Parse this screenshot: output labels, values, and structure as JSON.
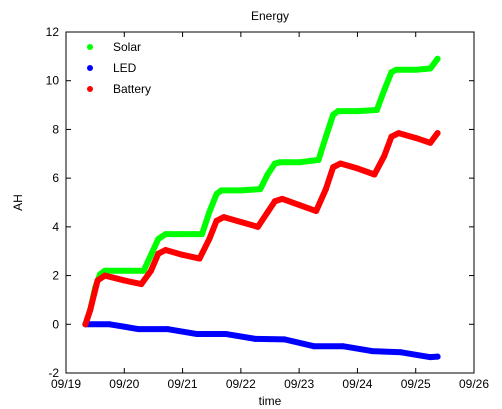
{
  "chart_data": {
    "type": "line",
    "title": "Energy",
    "xlabel": "time",
    "ylabel": "AH",
    "xlim": [
      "09/19",
      "09/26"
    ],
    "ylim": [
      -2,
      12
    ],
    "x_ticks": [
      "09/19",
      "09/20",
      "09/21",
      "09/22",
      "09/23",
      "09/24",
      "09/25",
      "09/26"
    ],
    "y_ticks": [
      -2,
      0,
      2,
      4,
      6,
      8,
      10,
      12
    ],
    "grid": false,
    "legend_position": "top-left",
    "series": [
      {
        "name": "Solar",
        "color": "#00ff00",
        "points": [
          {
            "x": "09/19 08:00",
            "y": 0.0
          },
          {
            "x": "09/19 10:00",
            "y": 0.6
          },
          {
            "x": "09/19 12:00",
            "y": 1.5
          },
          {
            "x": "09/19 14:00",
            "y": 2.05
          },
          {
            "x": "09/19 16:00",
            "y": 2.2
          },
          {
            "x": "09/20 00:00",
            "y": 2.2
          },
          {
            "x": "09/20 08:00",
            "y": 2.2
          },
          {
            "x": "09/20 11:00",
            "y": 2.85
          },
          {
            "x": "09/20 14:00",
            "y": 3.5
          },
          {
            "x": "09/20 17:00",
            "y": 3.7
          },
          {
            "x": "09/21 00:00",
            "y": 3.7
          },
          {
            "x": "09/21 08:00",
            "y": 3.7
          },
          {
            "x": "09/21 11:00",
            "y": 4.6
          },
          {
            "x": "09/21 14:00",
            "y": 5.35
          },
          {
            "x": "09/21 16:00",
            "y": 5.5
          },
          {
            "x": "09/22 00:00",
            "y": 5.5
          },
          {
            "x": "09/22 08:00",
            "y": 5.55
          },
          {
            "x": "09/22 11:00",
            "y": 6.15
          },
          {
            "x": "09/22 14:00",
            "y": 6.6
          },
          {
            "x": "09/22 16:00",
            "y": 6.65
          },
          {
            "x": "09/23 00:00",
            "y": 6.65
          },
          {
            "x": "09/23 08:00",
            "y": 6.75
          },
          {
            "x": "09/23 11:00",
            "y": 7.7
          },
          {
            "x": "09/23 14:00",
            "y": 8.6
          },
          {
            "x": "09/23 16:00",
            "y": 8.75
          },
          {
            "x": "09/24 00:00",
            "y": 8.75
          },
          {
            "x": "09/24 08:00",
            "y": 8.8
          },
          {
            "x": "09/24 11:00",
            "y": 9.6
          },
          {
            "x": "09/24 14:00",
            "y": 10.35
          },
          {
            "x": "09/24 16:00",
            "y": 10.45
          },
          {
            "x": "09/25 00:00",
            "y": 10.45
          },
          {
            "x": "09/25 06:00",
            "y": 10.5
          },
          {
            "x": "09/25 09:00",
            "y": 10.9
          }
        ]
      },
      {
        "name": "LED",
        "color": "#0000ff",
        "points": [
          {
            "x": "09/19 08:00",
            "y": 0.0
          },
          {
            "x": "09/19 18:00",
            "y": 0.0
          },
          {
            "x": "09/20 06:00",
            "y": -0.2
          },
          {
            "x": "09/20 18:00",
            "y": -0.2
          },
          {
            "x": "09/21 06:00",
            "y": -0.4
          },
          {
            "x": "09/21 18:00",
            "y": -0.4
          },
          {
            "x": "09/22 06:00",
            "y": -0.6
          },
          {
            "x": "09/22 18:00",
            "y": -0.62
          },
          {
            "x": "09/23 06:00",
            "y": -0.9
          },
          {
            "x": "09/23 18:00",
            "y": -0.9
          },
          {
            "x": "09/24 06:00",
            "y": -1.1
          },
          {
            "x": "09/24 18:00",
            "y": -1.15
          },
          {
            "x": "09/25 06:00",
            "y": -1.35
          },
          {
            "x": "09/25 09:00",
            "y": -1.33
          }
        ]
      },
      {
        "name": "Battery",
        "color": "#ff0000",
        "points": [
          {
            "x": "09/19 08:00",
            "y": 0.0
          },
          {
            "x": "09/19 10:00",
            "y": 0.6
          },
          {
            "x": "09/19 13:00",
            "y": 1.8
          },
          {
            "x": "09/19 16:00",
            "y": 2.0
          },
          {
            "x": "09/20 00:00",
            "y": 1.8
          },
          {
            "x": "09/20 07:00",
            "y": 1.65
          },
          {
            "x": "09/20 11:00",
            "y": 2.2
          },
          {
            "x": "09/20 14:00",
            "y": 2.9
          },
          {
            "x": "09/20 17:00",
            "y": 3.05
          },
          {
            "x": "09/21 00:00",
            "y": 2.85
          },
          {
            "x": "09/21 07:00",
            "y": 2.7
          },
          {
            "x": "09/21 11:00",
            "y": 3.5
          },
          {
            "x": "09/21 14:00",
            "y": 4.25
          },
          {
            "x": "09/21 17:00",
            "y": 4.4
          },
          {
            "x": "09/22 00:00",
            "y": 4.2
          },
          {
            "x": "09/22 07:00",
            "y": 4.0
          },
          {
            "x": "09/22 11:00",
            "y": 4.6
          },
          {
            "x": "09/22 14:00",
            "y": 5.05
          },
          {
            "x": "09/22 17:00",
            "y": 5.15
          },
          {
            "x": "09/23 00:00",
            "y": 4.9
          },
          {
            "x": "09/23 07:00",
            "y": 4.65
          },
          {
            "x": "09/23 11:00",
            "y": 5.55
          },
          {
            "x": "09/23 14:00",
            "y": 6.45
          },
          {
            "x": "09/23 17:00",
            "y": 6.6
          },
          {
            "x": "09/24 00:00",
            "y": 6.4
          },
          {
            "x": "09/24 07:00",
            "y": 6.15
          },
          {
            "x": "09/24 11:00",
            "y": 6.9
          },
          {
            "x": "09/24 14:00",
            "y": 7.7
          },
          {
            "x": "09/24 17:00",
            "y": 7.85
          },
          {
            "x": "09/25 00:00",
            "y": 7.65
          },
          {
            "x": "09/25 06:00",
            "y": 7.45
          },
          {
            "x": "09/25 09:00",
            "y": 7.85
          }
        ]
      }
    ]
  }
}
